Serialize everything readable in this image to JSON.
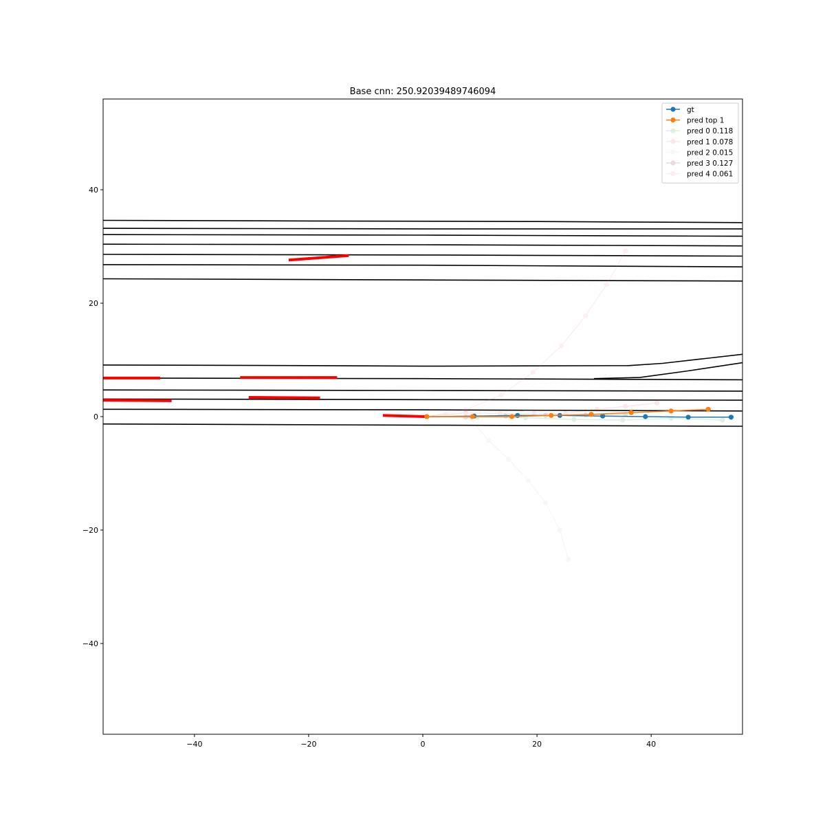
{
  "chart_data": {
    "type": "line",
    "title": "Base cnn: 250.92039489746094",
    "xlabel": "",
    "ylabel": "",
    "xlim": [
      -56,
      56
    ],
    "ylim": [
      -56,
      56
    ],
    "xticks": [
      -40,
      -20,
      0,
      20,
      40
    ],
    "yticks": [
      -40,
      -20,
      0,
      20,
      40
    ],
    "xtick_labels": [
      "−40",
      "−20",
      "0",
      "20",
      "40"
    ],
    "ytick_labels": [
      "−40",
      "−20",
      "0",
      "20",
      "40"
    ],
    "grid": false,
    "legend_position": "top-right",
    "lanes": [
      [
        [
          -56,
          34.6
        ],
        [
          -20,
          34.5
        ],
        [
          20,
          34.4
        ],
        [
          56,
          34.2
        ]
      ],
      [
        [
          -56,
          33.2
        ],
        [
          0,
          33.1
        ],
        [
          56,
          33.1
        ]
      ],
      [
        [
          -56,
          32.1
        ],
        [
          0,
          32.0
        ],
        [
          56,
          31.8
        ]
      ],
      [
        [
          -56,
          30.4
        ],
        [
          0,
          30.3
        ],
        [
          56,
          30.1
        ]
      ],
      [
        [
          -56,
          28.6
        ],
        [
          0,
          28.5
        ],
        [
          56,
          28.3
        ]
      ],
      [
        [
          -56,
          26.8
        ],
        [
          0,
          26.7
        ],
        [
          56,
          26.4
        ]
      ],
      [
        [
          -56,
          24.3
        ],
        [
          0,
          24.1
        ],
        [
          56,
          23.9
        ]
      ],
      [
        [
          -56,
          9.1
        ],
        [
          -20,
          9.0
        ],
        [
          0,
          8.9
        ],
        [
          36,
          9.0
        ],
        [
          42,
          9.4
        ],
        [
          50,
          10.3
        ],
        [
          56,
          11.0
        ]
      ],
      [
        [
          -56,
          6.8
        ],
        [
          0,
          6.7
        ],
        [
          56,
          6.5
        ]
      ],
      [
        [
          30,
          6.7
        ],
        [
          38,
          6.9
        ],
        [
          46,
          8.0
        ],
        [
          56,
          9.5
        ]
      ],
      [
        [
          -56,
          4.7
        ],
        [
          0,
          4.6
        ],
        [
          56,
          4.5
        ]
      ],
      [
        [
          -56,
          3.1
        ],
        [
          0,
          3.0
        ],
        [
          56,
          2.9
        ]
      ],
      [
        [
          -56,
          1.3
        ],
        [
          0,
          1.2
        ],
        [
          56,
          1.0
        ]
      ],
      [
        [
          -56,
          -1.3
        ],
        [
          0,
          -1.5
        ],
        [
          56,
          -1.7
        ]
      ]
    ],
    "agents": [
      [
        [
          -23.5,
          27.6
        ],
        [
          -13,
          28.4
        ]
      ],
      [
        [
          -56,
          6.8
        ],
        [
          -46,
          6.8
        ]
      ],
      [
        [
          -32,
          6.9
        ],
        [
          -15,
          6.9
        ]
      ],
      [
        [
          -56,
          2.9
        ],
        [
          -44,
          2.8
        ]
      ],
      [
        [
          -30.5,
          3.4
        ],
        [
          -18,
          3.3
        ]
      ],
      [
        [
          -7,
          0.2
        ],
        [
          0.5,
          0.0
        ]
      ]
    ],
    "series": [
      {
        "name": "gt",
        "color": "#1f77b4",
        "alpha": 1,
        "x": [
          0.7,
          9.0,
          16.6,
          24.0,
          31.5,
          39.0,
          46.5,
          54.0
        ],
        "y": [
          0.0,
          0.1,
          0.2,
          0.2,
          0.1,
          0.0,
          -0.1,
          -0.1
        ]
      },
      {
        "name": "pred top 1",
        "color": "#ff7f0e",
        "alpha": 1,
        "x": [
          0.7,
          8.7,
          15.6,
          22.5,
          29.5,
          36.5,
          43.5,
          50.0
        ],
        "y": [
          0.0,
          0.0,
          0.0,
          0.2,
          0.4,
          0.7,
          1.0,
          1.3
        ]
      },
      {
        "name": "pred 0 0.118",
        "color": "#2ca02c",
        "alpha": 0.15,
        "x": [
          0.7,
          9.5,
          18.0,
          26.5,
          35.0,
          43.5,
          52.5
        ],
        "y": [
          0.0,
          -0.1,
          -0.2,
          -0.5,
          -0.6,
          -0.3,
          -0.6
        ]
      },
      {
        "name": "pred 1 0.078",
        "color": "#d62728",
        "alpha": 0.1,
        "x": [
          0.7,
          7.5,
          13.5,
          19.5,
          25.0,
          30.5,
          35.5,
          41.0
        ],
        "y": [
          0.0,
          0.7,
          0.5,
          0.6,
          0.6,
          1.3,
          1.8,
          2.4
        ]
      },
      {
        "name": "pred 2 0.015",
        "color": "#9467bd",
        "alpha": 0.05,
        "x": [
          0.7,
          4.0,
          8.0,
          11.5,
          15.0,
          18.5,
          21.5,
          24.0,
          25.5
        ],
        "y": [
          0.0,
          0.5,
          0.0,
          -4.2,
          -7.5,
          -11.3,
          -15.2,
          -20.0,
          -25.2
        ]
      },
      {
        "name": "pred 3 0.127",
        "color": "#8c564b",
        "alpha": 0.2,
        "x": [
          0.7,
          7.5,
          14.5,
          21.5,
          28.5,
          35.5
        ],
        "y": [
          0.0,
          -0.1,
          0.1,
          0.2,
          0.3,
          0.4
        ]
      },
      {
        "name": "pred 4 0.061",
        "color": "#e377c2",
        "alpha": 0.12,
        "x": [
          0.7,
          7.5,
          13.7,
          19.3,
          24.3,
          28.5,
          32.2,
          35.5
        ],
        "y": [
          0.0,
          1.2,
          3.8,
          7.8,
          12.5,
          17.8,
          23.3,
          29.2
        ]
      }
    ]
  }
}
